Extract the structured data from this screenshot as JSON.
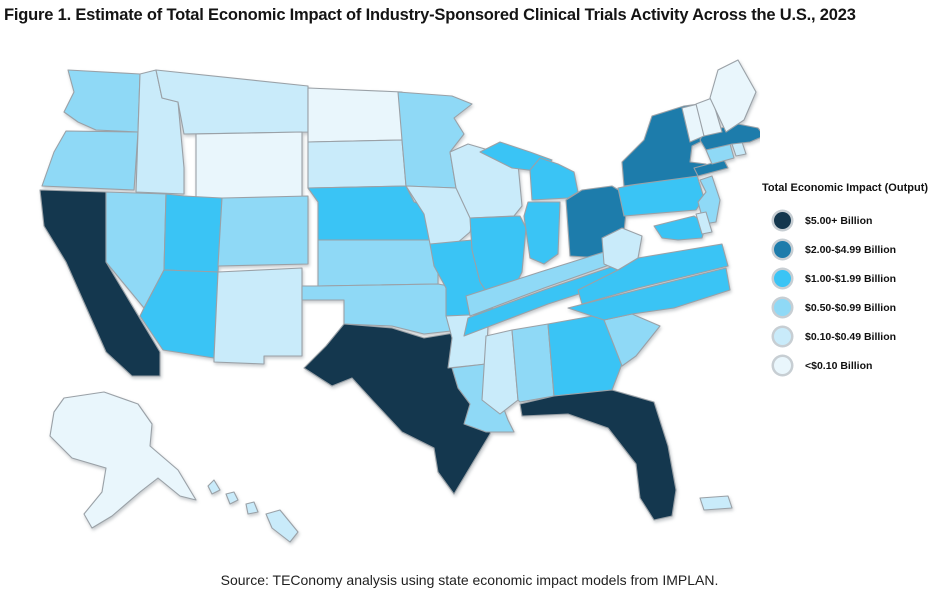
{
  "title": "Figure 1. Estimate of Total Economic Impact of Industry-Sponsored Clinical Trials Activity Across the U.S., 2023",
  "source": "Source: TEConomy analysis using state economic impact models from IMPLAN.",
  "legend": {
    "title": "Total Economic Impact (Output)",
    "swatch_ring_color": "#c7ced3",
    "categories": [
      {
        "label": "$5.00+ Billion",
        "color": "#14374e"
      },
      {
        "label": "$2.00-$4.99 Billion",
        "color": "#1d7cab"
      },
      {
        "label": "$1.00-$1.99 Billion",
        "color": "#3ac4f5"
      },
      {
        "label": "$0.50-$0.99 Billion",
        "color": "#8fd9f6"
      },
      {
        "label": "$0.10-$0.49 Billion",
        "color": "#c9ebfa"
      },
      {
        "label": "<$0.10 Billion",
        "color": "#e9f6fc"
      }
    ]
  },
  "map": {
    "region": "United States",
    "border_color": "#9aa1a7",
    "background_color": "#ffffff"
  },
  "chart_data": {
    "type": "choropleth",
    "title": "Figure 1. Estimate of Total Economic Impact of Industry-Sponsored Clinical Trials Activity Across the U.S., 2023",
    "legend_title": "Total Economic Impact (Output)",
    "legend_position": "right",
    "categories": [
      "$5.00+ Billion",
      "$2.00-$4.99 Billion",
      "$1.00-$1.99 Billion",
      "$0.50-$0.99 Billion",
      "$0.10-$0.49 Billion",
      "<$0.10 Billion"
    ],
    "states": [
      {
        "abbr": "CA",
        "name": "California",
        "category": "$5.00+ Billion"
      },
      {
        "abbr": "TX",
        "name": "Texas",
        "category": "$5.00+ Billion"
      },
      {
        "abbr": "FL",
        "name": "Florida",
        "category": "$5.00+ Billion"
      },
      {
        "abbr": "NY",
        "name": "New York",
        "category": "$2.00-$4.99 Billion"
      },
      {
        "abbr": "MA",
        "name": "Massachusetts",
        "category": "$2.00-$4.99 Billion"
      },
      {
        "abbr": "OH",
        "name": "Ohio",
        "category": "$2.00-$4.99 Billion"
      },
      {
        "abbr": "PA",
        "name": "Pennsylvania",
        "category": "$1.00-$1.99 Billion"
      },
      {
        "abbr": "MD",
        "name": "Maryland",
        "category": "$1.00-$1.99 Billion"
      },
      {
        "abbr": "VA",
        "name": "Virginia",
        "category": "$1.00-$1.99 Billion"
      },
      {
        "abbr": "NC",
        "name": "North Carolina",
        "category": "$1.00-$1.99 Billion"
      },
      {
        "abbr": "TN",
        "name": "Tennessee",
        "category": "$1.00-$1.99 Billion"
      },
      {
        "abbr": "GA",
        "name": "Georgia",
        "category": "$1.00-$1.99 Billion"
      },
      {
        "abbr": "IL",
        "name": "Illinois",
        "category": "$1.00-$1.99 Billion"
      },
      {
        "abbr": "IN",
        "name": "Indiana",
        "category": "$1.00-$1.99 Billion"
      },
      {
        "abbr": "MI",
        "name": "Michigan",
        "category": "$1.00-$1.99 Billion"
      },
      {
        "abbr": "MO",
        "name": "Missouri",
        "category": "$1.00-$1.99 Billion"
      },
      {
        "abbr": "NE",
        "name": "Nebraska",
        "category": "$1.00-$1.99 Billion"
      },
      {
        "abbr": "UT",
        "name": "Utah",
        "category": "$1.00-$1.99 Billion"
      },
      {
        "abbr": "AZ",
        "name": "Arizona",
        "category": "$1.00-$1.99 Billion"
      },
      {
        "abbr": "WA",
        "name": "Washington",
        "category": "$0.50-$0.99 Billion"
      },
      {
        "abbr": "OR",
        "name": "Oregon",
        "category": "$0.50-$0.99 Billion"
      },
      {
        "abbr": "NV",
        "name": "Nevada",
        "category": "$0.50-$0.99 Billion"
      },
      {
        "abbr": "CO",
        "name": "Colorado",
        "category": "$0.50-$0.99 Billion"
      },
      {
        "abbr": "MN",
        "name": "Minnesota",
        "category": "$0.50-$0.99 Billion"
      },
      {
        "abbr": "KS",
        "name": "Kansas",
        "category": "$0.50-$0.99 Billion"
      },
      {
        "abbr": "OK",
        "name": "Oklahoma",
        "category": "$0.50-$0.99 Billion"
      },
      {
        "abbr": "LA",
        "name": "Louisiana",
        "category": "$0.50-$0.99 Billion"
      },
      {
        "abbr": "KY",
        "name": "Kentucky",
        "category": "$0.50-$0.99 Billion"
      },
      {
        "abbr": "AL",
        "name": "Alabama",
        "category": "$0.50-$0.99 Billion"
      },
      {
        "abbr": "SC",
        "name": "South Carolina",
        "category": "$0.50-$0.99 Billion"
      },
      {
        "abbr": "NJ",
        "name": "New Jersey",
        "category": "$0.50-$0.99 Billion"
      },
      {
        "abbr": "CT",
        "name": "Connecticut",
        "category": "$0.50-$0.99 Billion"
      },
      {
        "abbr": "MT",
        "name": "Montana",
        "category": "$0.10-$0.49 Billion"
      },
      {
        "abbr": "ID",
        "name": "Idaho",
        "category": "$0.10-$0.49 Billion"
      },
      {
        "abbr": "SD",
        "name": "South Dakota",
        "category": "$0.10-$0.49 Billion"
      },
      {
        "abbr": "IA",
        "name": "Iowa",
        "category": "$0.10-$0.49 Billion"
      },
      {
        "abbr": "WI",
        "name": "Wisconsin",
        "category": "$0.10-$0.49 Billion"
      },
      {
        "abbr": "NM",
        "name": "New Mexico",
        "category": "$0.10-$0.49 Billion"
      },
      {
        "abbr": "AR",
        "name": "Arkansas",
        "category": "$0.10-$0.49 Billion"
      },
      {
        "abbr": "MS",
        "name": "Mississippi",
        "category": "$0.10-$0.49 Billion"
      },
      {
        "abbr": "WV",
        "name": "West Virginia",
        "category": "$0.10-$0.49 Billion"
      },
      {
        "abbr": "DE",
        "name": "Delaware",
        "category": "$0.10-$0.49 Billion"
      },
      {
        "abbr": "RI",
        "name": "Rhode Island",
        "category": "$0.10-$0.49 Billion"
      },
      {
        "abbr": "HI",
        "name": "Hawaii",
        "category": "$0.10-$0.49 Billion"
      },
      {
        "abbr": "PR",
        "name": "Puerto Rico",
        "category": "$0.10-$0.49 Billion"
      },
      {
        "abbr": "WY",
        "name": "Wyoming",
        "category": "<$0.10 Billion"
      },
      {
        "abbr": "ND",
        "name": "North Dakota",
        "category": "<$0.10 Billion"
      },
      {
        "abbr": "ME",
        "name": "Maine",
        "category": "<$0.10 Billion"
      },
      {
        "abbr": "NH",
        "name": "New Hampshire",
        "category": "<$0.10 Billion"
      },
      {
        "abbr": "VT",
        "name": "Vermont",
        "category": "<$0.10 Billion"
      },
      {
        "abbr": "AK",
        "name": "Alaska",
        "category": "<$0.10 Billion"
      }
    ]
  }
}
